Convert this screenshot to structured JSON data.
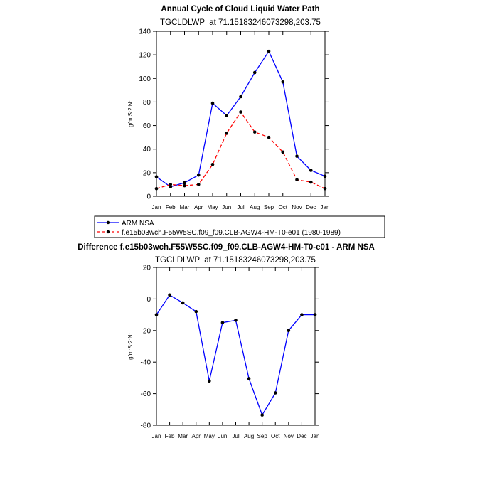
{
  "chart_data": [
    {
      "type": "line",
      "title": "Annual Cycle of Cloud Liquid Water Path",
      "subtitle": "TGCLDLWP  at 71.15183246073298,203.75",
      "xlabel": "",
      "ylabel": "g/m:S:2:N:",
      "categories": [
        "Jan",
        "Feb",
        "Mar",
        "Apr",
        "May",
        "Jun",
        "Jul",
        "Aug",
        "Sep",
        "Oct",
        "Nov",
        "Dec",
        "Jan"
      ],
      "ylim": [
        0,
        140
      ],
      "yticks": [
        0,
        20,
        40,
        60,
        80,
        100,
        120,
        140
      ],
      "grid": false,
      "legend_position": "below",
      "series": [
        {
          "name": "ARM NSA",
          "color": "#0000ff",
          "dash": "solid",
          "values": [
            16.5,
            8,
            11.5,
            18,
            79,
            68.5,
            84.5,
            105,
            123,
            97,
            34,
            22,
            17
          ]
        },
        {
          "name": "f.e15b03wch.F55W5SC.f09_f09.CLB-AGW4-HM-T0-e01 (1980-1989)",
          "color": "#ff0000",
          "dash": "dashed",
          "values": [
            6.5,
            10,
            9,
            10,
            27,
            53.5,
            71.5,
            54.5,
            50,
            37.5,
            14,
            12,
            6.5
          ]
        }
      ]
    },
    {
      "type": "line",
      "title": "Difference f.e15b03wch.F55W5SC.f09_f09.CLB-AGW4-HM-T0-e01 - ARM NSA",
      "subtitle": "TGCLDLWP  at 71.15183246073298,203.75",
      "xlabel": "",
      "ylabel": "g/m:S:2:N:",
      "categories": [
        "Jan",
        "Feb",
        "Mar",
        "Apr",
        "May",
        "Jun",
        "Jul",
        "Aug",
        "Sep",
        "Oct",
        "Nov",
        "Dec",
        "Jan"
      ],
      "ylim": [
        -80,
        20
      ],
      "yticks": [
        -80,
        -60,
        -40,
        -20,
        0,
        20
      ],
      "grid": false,
      "series": [
        {
          "color": "#0000ff",
          "dash": "solid",
          "values": [
            -10,
            2.5,
            -2.5,
            -8,
            -52,
            -15,
            -13.5,
            -50.5,
            -73.5,
            -59.5,
            -20,
            -10,
            -10
          ]
        }
      ]
    }
  ]
}
